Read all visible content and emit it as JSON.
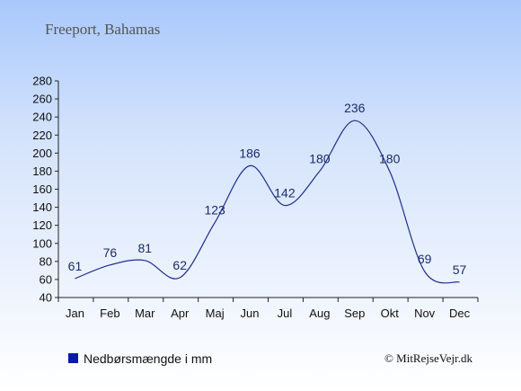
{
  "title": "Freeport, Bahamas",
  "credit": "© MitRejseVejr.dk",
  "chart_data": {
    "type": "line",
    "categories": [
      "Jan",
      "Feb",
      "Mar",
      "Apr",
      "Maj",
      "Jun",
      "Jul",
      "Aug",
      "Sep",
      "Okt",
      "Nov",
      "Dec"
    ],
    "series": [
      {
        "name": "Nedbørsmængde i mm",
        "values": [
          61,
          76,
          81,
          62,
          123,
          186,
          142,
          180,
          236,
          180,
          69,
          57
        ]
      }
    ],
    "ylim": [
      40,
      280
    ],
    "yticks": [
      40,
      60,
      80,
      100,
      120,
      140,
      160,
      180,
      200,
      220,
      240,
      260,
      280
    ],
    "line_color": "#1f2f8a",
    "legend_color": "#0a1aa8",
    "legend_position": "bottom-left"
  }
}
